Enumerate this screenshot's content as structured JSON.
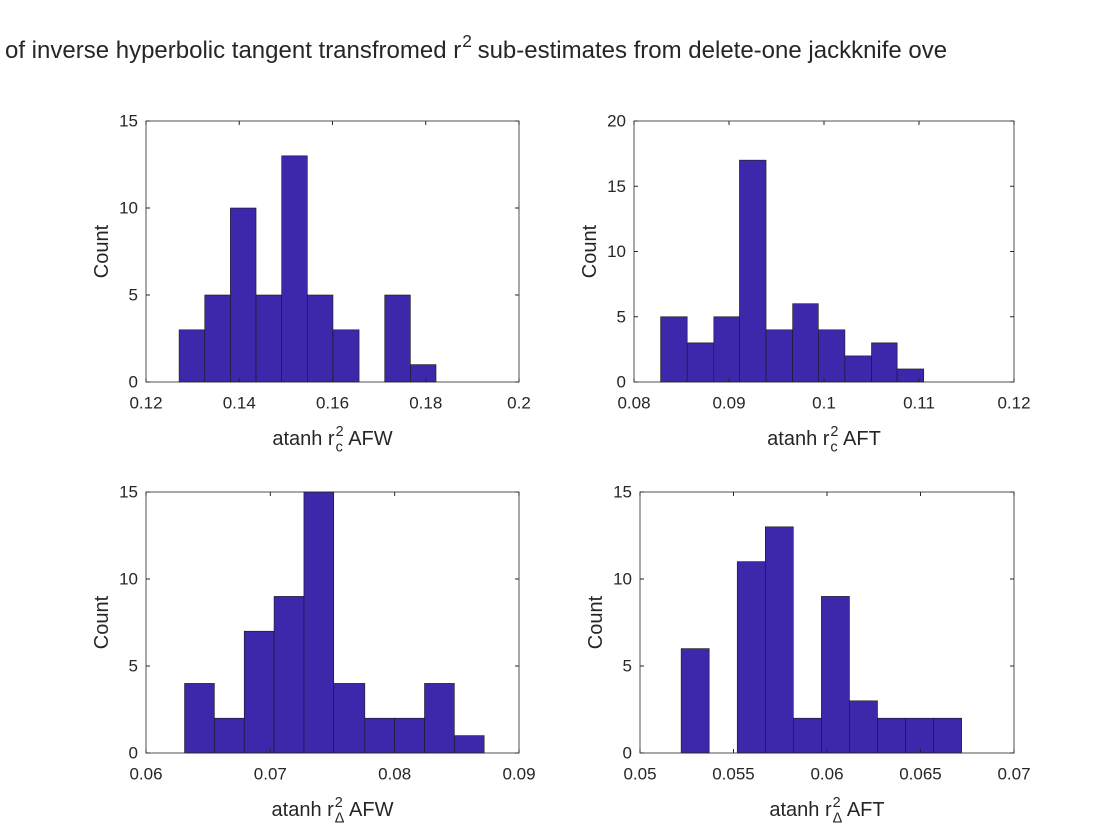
{
  "title": {
    "text": "of inverse hyperbolic tangent transfromed r",
    "sup": "2",
    "rest": "sub-estimates from delete-one jackknife ove"
  },
  "chart_data": [
    {
      "type": "histogram",
      "color": "#3d27aa",
      "bins": [
        0.1271,
        0.1326,
        0.1381,
        0.1436,
        0.1491,
        0.1546,
        0.1601,
        0.1657,
        0.1712,
        0.1767,
        0.1822
      ],
      "values": [
        3,
        5,
        10,
        5,
        13,
        5,
        3,
        0,
        5,
        1
      ],
      "xlim": [
        0.12,
        0.2
      ],
      "xticks": [
        0.12,
        0.14,
        0.16,
        0.18,
        0.2
      ],
      "ylim": [
        0,
        15
      ],
      "yticks": [
        0,
        5,
        10,
        15
      ],
      "xlabel": {
        "text": "atanh r",
        "sup": "2",
        "sub": "c",
        "rest": "AFW"
      },
      "ylabel": "Count"
    },
    {
      "type": "histogram",
      "color": "#3d27aa",
      "bins": [
        0.0828,
        0.0856,
        0.0884,
        0.0911,
        0.0939,
        0.0967,
        0.0994,
        0.1022,
        0.105,
        0.1077,
        0.1105
      ],
      "values": [
        5,
        3,
        5,
        17,
        4,
        6,
        4,
        2,
        3,
        1
      ],
      "xlim": [
        0.08,
        0.12
      ],
      "xticks": [
        0.08,
        0.09,
        0.1,
        0.11,
        0.12
      ],
      "ylim": [
        0,
        20
      ],
      "yticks": [
        0,
        5,
        10,
        15,
        20
      ],
      "xlabel": {
        "text": "atanh r",
        "sup": "2",
        "sub": "c",
        "rest": "AFT"
      },
      "ylabel": "Count"
    },
    {
      "type": "histogram",
      "color": "#3d27aa",
      "bins": [
        0.0631,
        0.0655,
        0.0679,
        0.0703,
        0.0727,
        0.0751,
        0.0776,
        0.08,
        0.0824,
        0.0848,
        0.0872
      ],
      "values": [
        4,
        2,
        7,
        9,
        15,
        4,
        2,
        2,
        4,
        1
      ],
      "xlim": [
        0.06,
        0.09
      ],
      "xticks": [
        0.06,
        0.07,
        0.08,
        0.09
      ],
      "ylim": [
        0,
        15
      ],
      "yticks": [
        0,
        5,
        10,
        15
      ],
      "xlabel": {
        "text": "atanh r",
        "sup": "2",
        "sub": "Δ",
        "rest": "AFW"
      },
      "ylabel": "Count"
    },
    {
      "type": "histogram",
      "color": "#3d27aa",
      "bins": [
        0.0522,
        0.0537,
        0.0552,
        0.0567,
        0.0582,
        0.0597,
        0.0612,
        0.0627,
        0.0642,
        0.0657,
        0.0672
      ],
      "values": [
        6,
        0,
        11,
        13,
        2,
        9,
        3,
        2,
        2,
        2
      ],
      "xlim": [
        0.05,
        0.07
      ],
      "xticks": [
        0.05,
        0.055,
        0.06,
        0.065,
        0.07
      ],
      "ylim": [
        0,
        15
      ],
      "yticks": [
        0,
        5,
        10,
        15
      ],
      "xlabel": {
        "text": "atanh r",
        "sup": "2",
        "sub": "Δ",
        "rest": "AFT"
      },
      "ylabel": "Count"
    }
  ]
}
